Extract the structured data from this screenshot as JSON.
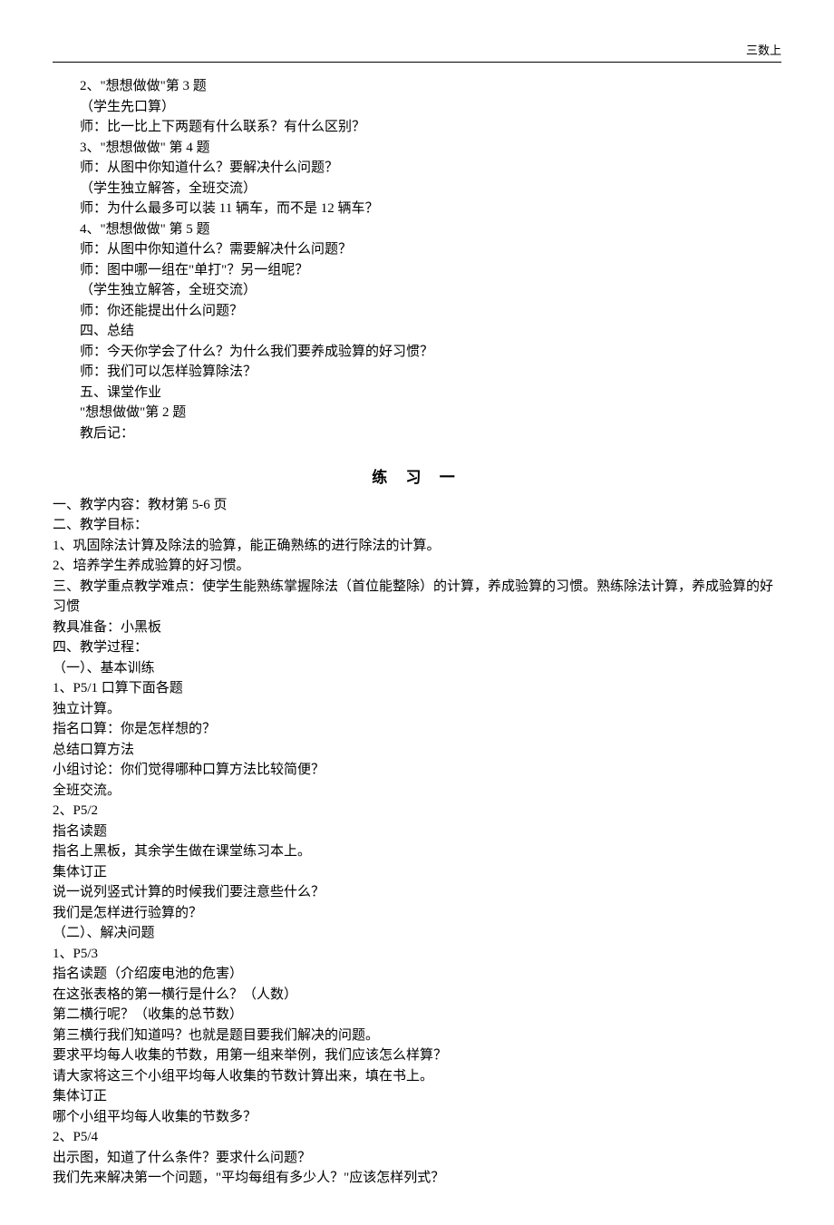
{
  "header": {
    "label": "三数上"
  },
  "section1": {
    "lines": [
      "2、\"想想做做\"第 3 题",
      "（学生先口算）",
      "师：比一比上下两题有什么联系？有什么区别？",
      "3、\"想想做做\" 第 4 题",
      "师：从图中你知道什么？要解决什么问题？",
      "（学生独立解答，全班交流）",
      "师：为什么最多可以装 11 辆车，而不是 12 辆车？",
      "4、\"想想做做\" 第 5 题",
      "师：从图中你知道什么？需要解决什么问题？",
      "师：图中哪一组在\"单打\"？另一组呢？",
      "（学生独立解答，全班交流）",
      "师：你还能提出什么问题？",
      "四、总结",
      "师：今天你学会了什么？为什么我们要养成验算的好习惯？",
      "师：我们可以怎样验算除法？",
      "五、课堂作业",
      "\"想想做做\"第 2 题",
      "教后记："
    ],
    "indent_line": "（学生先口算）"
  },
  "title": "练 习 一",
  "section2": {
    "lines": [
      "一、教学内容：教材第 5-6 页",
      "二、教学目标：",
      "1、巩固除法计算及除法的验算，能正确熟练的进行除法的计算。",
      "2、培养学生养成验算的好习惯。",
      "三、教学重点教学难点：使学生能熟练掌握除法（首位能整除）的计算，养成验算的习惯。熟练除法计算，养成验算的好习惯",
      "教具准备：小黑板",
      "四、教学过程：",
      "（一）、基本训练",
      "1、P5/1 口算下面各题",
      "独立计算。",
      "指名口算：你是怎样想的？",
      "总结口算方法",
      "小组讨论：你们觉得哪种口算方法比较简便？",
      "全班交流。",
      "2、P5/2",
      "指名读题",
      "指名上黑板，其余学生做在课堂练习本上。",
      "集体订正",
      "说一说列竖式计算的时候我们要注意些什么？",
      "我们是怎样进行验算的？",
      "（二）、解决问题",
      "1、P5/3",
      "指名读题（介绍废电池的危害）",
      "在这张表格的第一横行是什么？（人数）",
      "第二横行呢？（收集的总节数）",
      "第三横行我们知道吗？也就是题目要我们解决的问题。",
      "要求平均每人收集的节数，用第一组来举例，我们应该怎么样算？",
      "请大家将这三个小组平均每人收集的节数计算出来，填在书上。",
      "集体订正",
      "哪个小组平均每人收集的节数多？",
      "2、P5/4",
      "出示图，知道了什么条件？要求什么问题？",
      "我们先来解决第一个问题，\"平均每组有多少人？\"应该怎样列式？"
    ]
  }
}
